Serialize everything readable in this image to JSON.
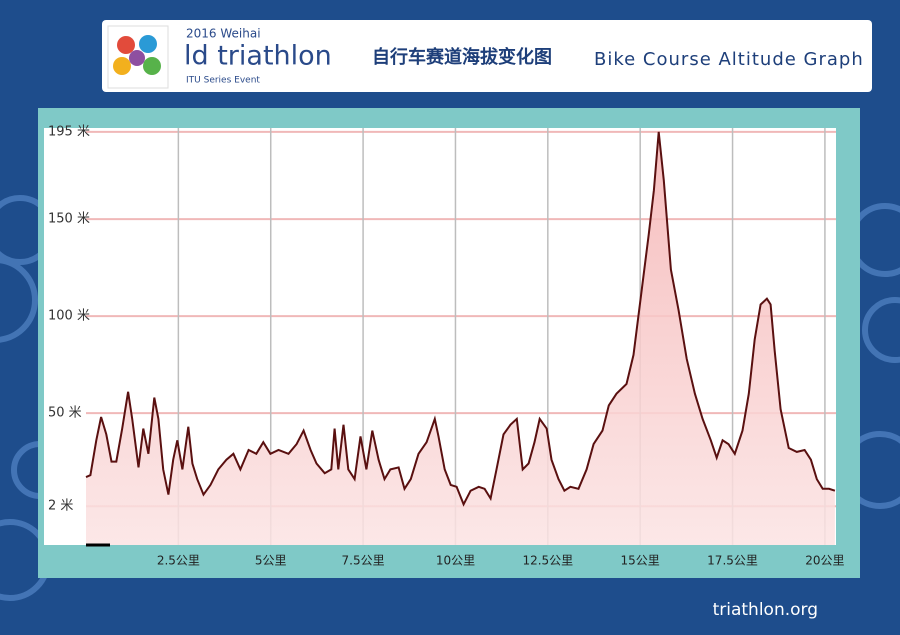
{
  "header": {
    "event_year": "2016 Weihai",
    "brand": "ld triathlon",
    "series": "ITU Series Event",
    "footer_logo": "triathlon.org"
  },
  "chart_data": {
    "type": "area",
    "title": "自行车赛道海拔变化图",
    "subtitle": "Bike Course Altitude Graph",
    "x": [
      0,
      0.12,
      0.28,
      0.41,
      0.55,
      0.69,
      0.82,
      0.98,
      1.14,
      1.25,
      1.42,
      1.55,
      1.69,
      1.85,
      1.96,
      2.09,
      2.23,
      2.36,
      2.47,
      2.61,
      2.77,
      2.88,
      3.01,
      3.18,
      3.37,
      3.58,
      3.8,
      3.99,
      4.18,
      4.4,
      4.61,
      4.8,
      4.99,
      5.21,
      5.48,
      5.7,
      5.89,
      6.08,
      6.24,
      6.46,
      6.64,
      6.73,
      6.83,
      6.97,
      7.1,
      7.27,
      7.43,
      7.59,
      7.75,
      7.92,
      8.08,
      8.24,
      8.46,
      8.62,
      8.79,
      9.0,
      9.22,
      9.44,
      9.54,
      9.71,
      9.87,
      10.03,
      10.22,
      10.41,
      10.63,
      10.79,
      10.95,
      11.11,
      11.3,
      11.49,
      11.66,
      11.82,
      11.98,
      12.14,
      12.28,
      12.47,
      12.6,
      12.79,
      12.95,
      13.11,
      13.33,
      13.55,
      13.74,
      13.98,
      14.15,
      14.36,
      14.63,
      14.82,
      15.01,
      15.23,
      15.37,
      15.5,
      15.64,
      15.83,
      16.04,
      16.26,
      16.48,
      16.69,
      16.91,
      17.07,
      17.23,
      17.39,
      17.56,
      17.77,
      17.94,
      18.1,
      18.26,
      18.43,
      18.53,
      18.64,
      18.8,
      19.02,
      19.24,
      19.45,
      19.62,
      19.78,
      19.94,
      20.11,
      20.27
    ],
    "values": [
      17,
      18,
      36,
      48,
      39,
      25,
      25,
      42,
      61,
      47,
      22,
      42,
      29,
      58,
      47,
      21,
      8,
      26,
      36,
      21,
      43,
      24,
      16,
      8,
      13,
      21,
      26,
      29,
      21,
      31,
      29,
      35,
      29,
      31,
      29,
      34,
      41,
      31,
      24,
      19,
      21,
      42,
      21,
      44,
      21,
      16,
      38,
      21,
      41,
      26,
      16,
      21,
      22,
      11,
      16,
      29,
      35,
      47,
      38,
      21,
      13,
      12,
      3,
      10,
      12,
      11,
      6,
      21,
      39,
      44,
      47,
      21,
      24,
      35,
      47,
      42,
      26,
      16,
      10,
      12,
      11,
      21,
      34,
      41,
      54,
      60,
      65,
      80,
      109,
      142,
      165,
      195,
      170,
      124,
      103,
      78,
      60,
      47,
      36,
      27,
      36,
      34,
      29,
      41,
      60,
      88,
      106,
      109,
      106,
      82,
      52,
      32,
      30,
      31,
      26,
      16,
      11,
      11,
      10
    ],
    "fill_color": "#f5b3b3",
    "line_color": "#5a1010",
    "xlim": [
      0,
      20.3
    ],
    "ylim": [
      -18,
      197
    ],
    "xticks": [
      {
        "value": 2.5,
        "label": "2.5公里"
      },
      {
        "value": 5,
        "label": "5公里"
      },
      {
        "value": 7.5,
        "label": "7.5公里"
      },
      {
        "value": 10,
        "label": "10公里"
      },
      {
        "value": 12.5,
        "label": "12.5公里"
      },
      {
        "value": 15,
        "label": "15公里"
      },
      {
        "value": 17.5,
        "label": "17.5公里"
      },
      {
        "value": 20,
        "label": "20公里"
      }
    ],
    "yticks": [
      {
        "value": 2,
        "label": "2 米"
      },
      {
        "value": 50,
        "label": "50 米"
      },
      {
        "value": 100,
        "label": "100 米"
      },
      {
        "value": 150,
        "label": "150 米"
      },
      {
        "value": 195,
        "label": "195 米"
      }
    ],
    "grid": true
  }
}
